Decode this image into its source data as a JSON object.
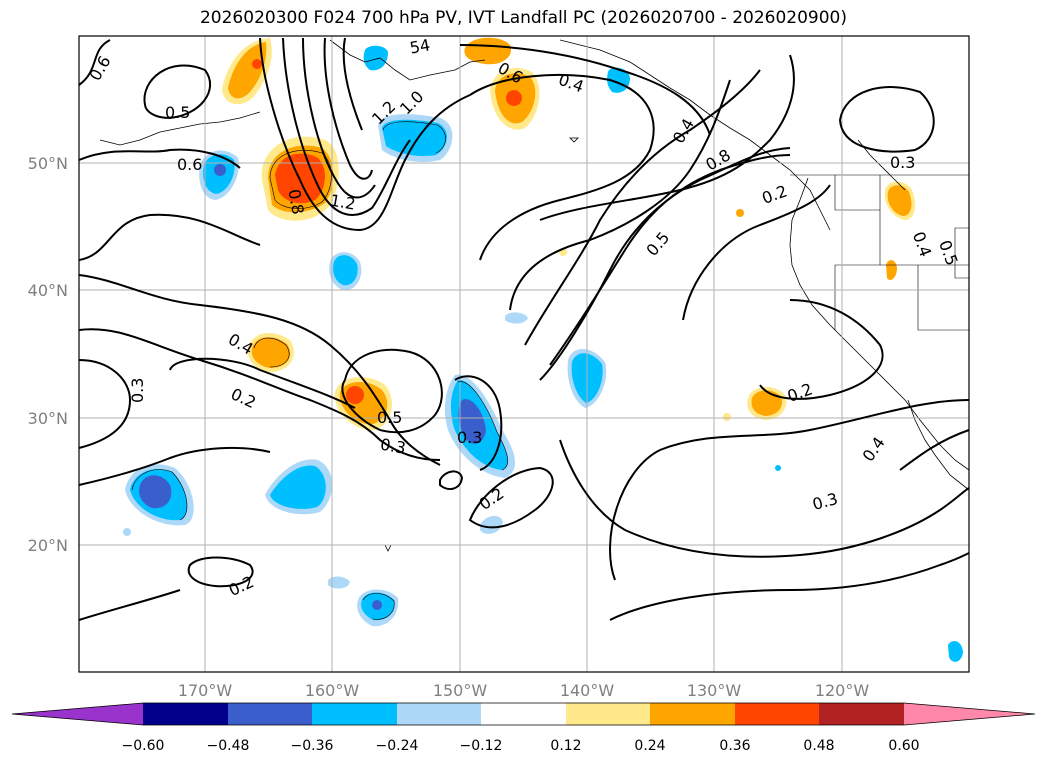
{
  "title": "2026020300 F024 700 hPa PV, IVT Landfall PC (2026020700 - 2026020900)",
  "axes": {
    "lat_labels": [
      "50°N",
      "40°N",
      "30°N",
      "20°N"
    ],
    "lon_labels": [
      "170°W",
      "160°W",
      "150°W",
      "140°W",
      "130°W",
      "120°W"
    ]
  },
  "contour_labels": [
    "0.5",
    "0.6",
    "0.8",
    "1.2",
    "1.2",
    "1.0",
    "0.4",
    "0.6",
    "0.4",
    "0.8",
    "0.2",
    "0.5",
    "0.3",
    "0.4",
    "0.5",
    "0.3",
    "0.4",
    "0.2",
    "0.5",
    "0.3",
    "0.3",
    "0.2",
    "0.2",
    "0.2",
    "0.4",
    "0.3",
    "0.6",
    "54"
  ],
  "colorbar": {
    "ticks": [
      "−0.60",
      "−0.48",
      "−0.36",
      "−0.24",
      "−0.12",
      "0.12",
      "0.24",
      "0.36",
      "0.48",
      "0.60"
    ],
    "colors": [
      "#9933cc",
      "#00008b",
      "#3a5fcd",
      "#00bfff",
      "#add8f7",
      "#ffffff",
      "#ffe98a",
      "#ffa500",
      "#ff4500",
      "#b22222",
      "#ff88aa"
    ]
  },
  "colors": {
    "neg_light": "#add8f7",
    "neg_mid": "#00bfff",
    "neg_dark": "#3a5fcd",
    "pos_light": "#ffe98a",
    "pos_mid": "#ffa500",
    "pos_dark": "#ff4500",
    "grid": "#b0b0b0"
  }
}
